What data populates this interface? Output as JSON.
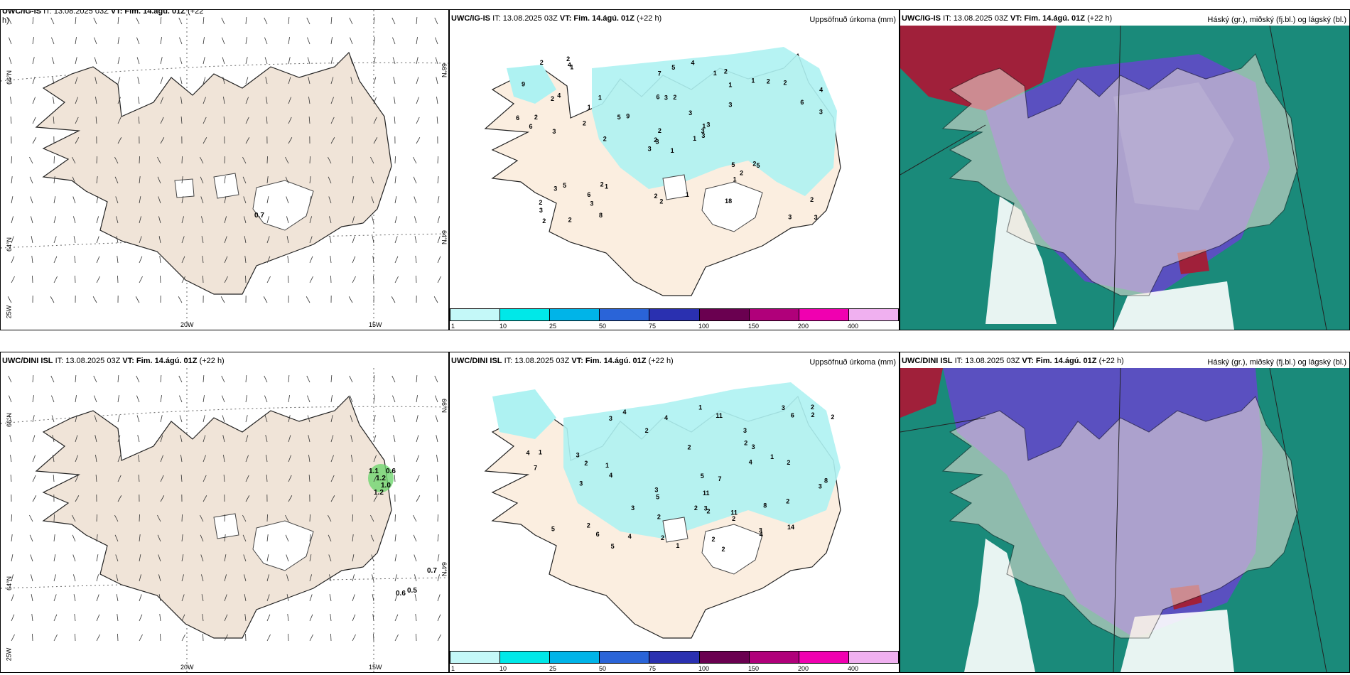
{
  "rows": [
    {
      "wind": {
        "model": "UWC/IG-IS",
        "it": "IT: 13.08.2025 03Z",
        "vt": "VT: Fim. 14.ágú. 01Z",
        "lead": "(+22",
        "lead2": "h)"
      },
      "precip": {
        "model": "UWC/IG-IS",
        "it": "IT: 13.08.2025 03Z",
        "vt": "VT: Fim. 14.ágú. 01Z",
        "lead": "(+22 h)",
        "title": "Uppsöfnuð úrkoma (mm)"
      },
      "cloud": {
        "model": "UWC/IG-IS",
        "it": "IT: 13.08.2025 03Z",
        "vt": "VT: Fim. 14.ágú. 01Z",
        "lead": "(+22 h)",
        "title": "Háský (gr.), miðský (fj.bl.) og lágský (bl.)"
      },
      "wind_labels": [
        "0.7"
      ]
    },
    {
      "wind": {
        "model": "UWC/DINI ISL",
        "it": "IT: 13.08.2025 03Z",
        "vt": "VT: Fim. 14.ágú. 01Z",
        "lead": "(+22 h)",
        "lead2": ""
      },
      "precip": {
        "model": "UWC/DINI ISL",
        "it": "IT: 13.08.2025 03Z",
        "vt": "VT: Fim. 14.ágú. 01Z",
        "lead": "(+22 h)",
        "title": "Uppsöfnuð úrkoma (mm)"
      },
      "cloud": {
        "model": "UWC/DINI ISL",
        "it": "IT: 13.08.2025 03Z",
        "vt": "VT: Fim. 14.ágú. 01Z",
        "lead": "(+22 h)",
        "title": "Háský (gr.), miðský (fj.bl.) og lágský (bl.)"
      },
      "wind_labels": [
        "1.1",
        "1.2",
        "0.6",
        "1.0",
        "1.2",
        "0.7",
        "0.6",
        "0.5"
      ]
    }
  ],
  "axes": {
    "lat66": "66°N",
    "lat64": "64°N",
    "lon20": "20W",
    "lon15": "15W",
    "lon25": "25W"
  },
  "colorbar": {
    "ticks": [
      "1",
      "10",
      "25",
      "50",
      "75",
      "100",
      "150",
      "200",
      "400"
    ],
    "colors": [
      "#c4f8f8",
      "#00e8e8",
      "#00b4e8",
      "#2a64d8",
      "#2a30b0",
      "#6a0050",
      "#b0007a",
      "#f000b0",
      "#f0b0f0"
    ]
  },
  "colors": {
    "land": "#f0e4d8",
    "precip_light": "#aef2f2",
    "cloud_high": "#1a8a7a",
    "cloud_mid": "#5a50c0",
    "cloud_low": "#a0203a",
    "green": "#90ee90"
  },
  "precip_values_top": [
    "1",
    "2",
    "3",
    "2",
    "1",
    "1",
    "2",
    "2",
    "1",
    "1",
    "1",
    "3",
    "3",
    "4",
    "3",
    "3",
    "2",
    "6",
    "3",
    "5",
    "9",
    "3",
    "3",
    "3",
    "3",
    "5",
    "4",
    "7",
    "6",
    "5",
    "3",
    "2",
    "2",
    "2",
    "1",
    "1",
    "2",
    "3",
    "2",
    "2",
    "4",
    "5",
    "2",
    "1",
    "8",
    "6",
    "3",
    "2",
    "2",
    "3",
    "3",
    "6",
    "9",
    "2",
    "18",
    "6",
    "4",
    "2",
    "1",
    "2",
    "5",
    "2",
    "2",
    "1",
    "2",
    "2",
    "1"
  ],
  "precip_values_bottom": [
    "2",
    "3",
    "2",
    "3",
    "1",
    "2",
    "3",
    "4",
    "5",
    "6",
    "5",
    "4",
    "3",
    "3",
    "4",
    "3",
    "7",
    "6",
    "8",
    "2",
    "3",
    "2",
    "5",
    "4",
    "7",
    "3",
    "3",
    "2",
    "1",
    "2",
    "2",
    "2",
    "3",
    "4",
    "4",
    "2",
    "1",
    "1",
    "8",
    "11",
    "4",
    "5",
    "2",
    "14",
    "11",
    "2",
    "2",
    "2",
    "11",
    "2",
    "3",
    "2",
    "1",
    "2"
  ]
}
